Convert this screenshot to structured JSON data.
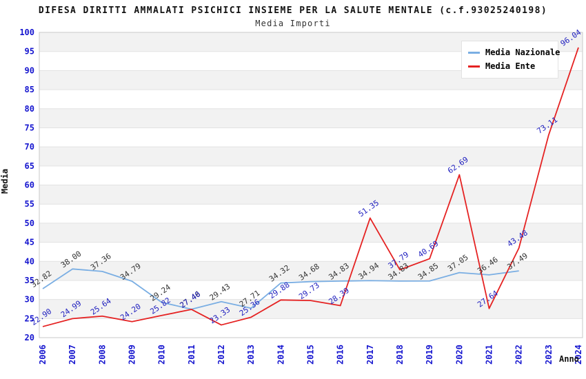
{
  "chart_data": {
    "type": "line",
    "title": "DIFESA DIRITTI AMMALATI PSICHICI INSIEME PER LA SALUTE MENTALE (c.f.93025240198)",
    "subtitle": "Media Importi",
    "xlabel": "Anno",
    "ylabel": "Media",
    "ylim": [
      20,
      100
    ],
    "ytick_step": 5,
    "grid": true,
    "legend_position": "top-right",
    "categories": [
      "2006",
      "2007",
      "2008",
      "2009",
      "2010",
      "2011",
      "2012",
      "2013",
      "2014",
      "2015",
      "2016",
      "2017",
      "2018",
      "2019",
      "2020",
      "2021",
      "2022",
      "2023",
      "2024"
    ],
    "series": [
      {
        "name": "Media Nazionale",
        "color": "#7aaee3",
        "label_color": "#333333",
        "values": [
          32.82,
          38.0,
          37.36,
          34.79,
          29.24,
          27.46,
          29.43,
          27.71,
          34.32,
          34.68,
          34.83,
          34.94,
          34.83,
          34.85,
          37.05,
          36.46,
          37.49,
          null,
          null
        ]
      },
      {
        "name": "Media Ente",
        "color": "#e52222",
        "label_color": "#2020bf",
        "values": [
          22.9,
          24.99,
          25.64,
          24.2,
          25.82,
          27.4,
          23.33,
          25.36,
          29.88,
          29.73,
          28.39,
          51.35,
          37.79,
          40.69,
          62.69,
          27.64,
          43.48,
          73.11,
          96.04
        ]
      }
    ],
    "colors": {
      "tick_label": "#1414cf",
      "band": "#f2f2f2",
      "gridline": "#e2e2e2",
      "plot_border": "#c9c9c9"
    }
  }
}
